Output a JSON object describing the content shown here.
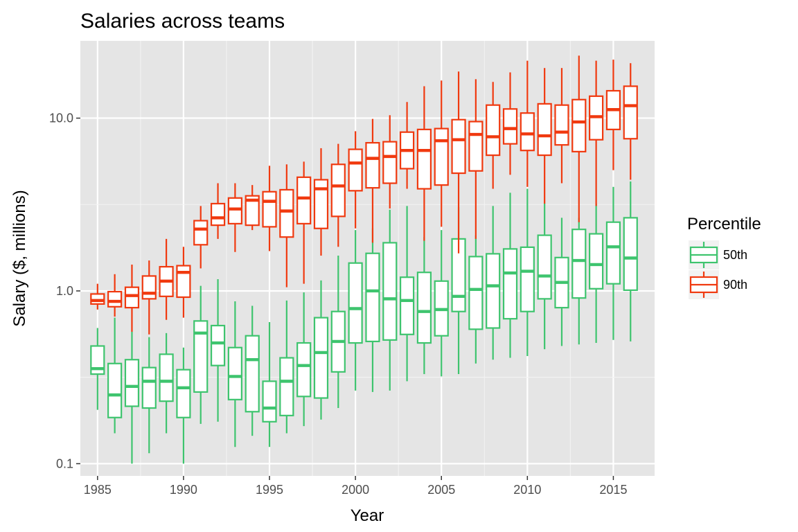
{
  "chart_data": {
    "type": "boxplot",
    "title": "Salaries across teams",
    "xlabel": "Year",
    "ylabel": "Salary ($, millions)",
    "y_scale": "log10",
    "ylim": [
      0.085,
      28
    ],
    "xlim": [
      1984,
      2017.4
    ],
    "x_ticks": [
      1985,
      1990,
      1995,
      2000,
      2005,
      2010,
      2015
    ],
    "x_tick_labels": [
      "1985",
      "1990",
      "1995",
      "2000",
      "2005",
      "2010",
      "2015"
    ],
    "y_ticks": [
      0.1,
      1.0,
      10.0
    ],
    "y_tick_labels": [
      "0.1",
      "1.0",
      "10.0"
    ],
    "grid": true,
    "panel_background": "#e5e5e5",
    "legend": {
      "title": "Percentile",
      "position": "right",
      "entries": [
        {
          "label": "50th",
          "color": "#3ec46e"
        },
        {
          "label": "90th",
          "color": "#f0390f"
        }
      ]
    },
    "series": [
      {
        "name": "50th",
        "color": "#3ec46e",
        "boxes": [
          {
            "x": 1985,
            "min": 0.205,
            "q1": 0.33,
            "median": 0.355,
            "q3": 0.48,
            "max": 0.61
          },
          {
            "x": 1986,
            "min": 0.15,
            "q1": 0.185,
            "median": 0.25,
            "q3": 0.38,
            "max": 0.7
          },
          {
            "x": 1987,
            "min": 0.1,
            "q1": 0.215,
            "median": 0.28,
            "q3": 0.4,
            "max": 0.58
          },
          {
            "x": 1988,
            "min": 0.115,
            "q1": 0.21,
            "median": 0.3,
            "q3": 0.36,
            "max": 0.54
          },
          {
            "x": 1989,
            "min": 0.15,
            "q1": 0.23,
            "median": 0.3,
            "q3": 0.43,
            "max": 0.57
          },
          {
            "x": 1990,
            "min": 0.1,
            "q1": 0.185,
            "median": 0.275,
            "q3": 0.35,
            "max": 0.47
          },
          {
            "x": 1991,
            "min": 0.17,
            "q1": 0.26,
            "median": 0.57,
            "q3": 0.67,
            "max": 1.07
          },
          {
            "x": 1992,
            "min": 0.175,
            "q1": 0.37,
            "median": 0.5,
            "q3": 0.63,
            "max": 1.17
          },
          {
            "x": 1993,
            "min": 0.125,
            "q1": 0.235,
            "median": 0.32,
            "q3": 0.47,
            "max": 0.87
          },
          {
            "x": 1994,
            "min": 0.145,
            "q1": 0.2,
            "median": 0.4,
            "q3": 0.55,
            "max": 0.82
          },
          {
            "x": 1995,
            "min": 0.125,
            "q1": 0.175,
            "median": 0.21,
            "q3": 0.3,
            "max": 0.66
          },
          {
            "x": 1996,
            "min": 0.15,
            "q1": 0.19,
            "median": 0.3,
            "q3": 0.41,
            "max": 0.88
          },
          {
            "x": 1997,
            "min": 0.165,
            "q1": 0.245,
            "median": 0.37,
            "q3": 0.5,
            "max": 0.98
          },
          {
            "x": 1998,
            "min": 0.18,
            "q1": 0.24,
            "median": 0.44,
            "q3": 0.7,
            "max": 1.15
          },
          {
            "x": 1999,
            "min": 0.21,
            "q1": 0.34,
            "median": 0.51,
            "q3": 0.76,
            "max": 1.6
          },
          {
            "x": 2000,
            "min": 0.265,
            "q1": 0.5,
            "median": 0.79,
            "q3": 1.45,
            "max": 2.25
          },
          {
            "x": 2001,
            "min": 0.26,
            "q1": 0.51,
            "median": 1.0,
            "q3": 1.65,
            "max": 2.3
          },
          {
            "x": 2002,
            "min": 0.265,
            "q1": 0.52,
            "median": 0.9,
            "q3": 1.9,
            "max": 2.95
          },
          {
            "x": 2003,
            "min": 0.3,
            "q1": 0.56,
            "median": 0.88,
            "q3": 1.2,
            "max": 3.1
          },
          {
            "x": 2004,
            "min": 0.33,
            "q1": 0.5,
            "median": 0.76,
            "q3": 1.28,
            "max": 2.05
          },
          {
            "x": 2005,
            "min": 0.32,
            "q1": 0.55,
            "median": 0.78,
            "q3": 1.14,
            "max": 2.25
          },
          {
            "x": 2006,
            "min": 0.33,
            "q1": 0.76,
            "median": 0.93,
            "q3": 2.0,
            "max": 3.05
          },
          {
            "x": 2007,
            "min": 0.38,
            "q1": 0.6,
            "median": 1.02,
            "q3": 1.58,
            "max": 2.1
          },
          {
            "x": 2008,
            "min": 0.4,
            "q1": 0.61,
            "median": 1.07,
            "q3": 1.64,
            "max": 3.1
          },
          {
            "x": 2009,
            "min": 0.41,
            "q1": 0.69,
            "median": 1.27,
            "q3": 1.75,
            "max": 3.7
          },
          {
            "x": 2010,
            "min": 0.42,
            "q1": 0.76,
            "median": 1.3,
            "q3": 1.79,
            "max": 3.9
          },
          {
            "x": 2011,
            "min": 0.46,
            "q1": 0.9,
            "median": 1.22,
            "q3": 2.1,
            "max": 3.2
          },
          {
            "x": 2012,
            "min": 0.48,
            "q1": 0.8,
            "median": 1.12,
            "q3": 1.56,
            "max": 2.65
          },
          {
            "x": 2013,
            "min": 0.49,
            "q1": 0.91,
            "median": 1.5,
            "q3": 2.27,
            "max": 2.65
          },
          {
            "x": 2014,
            "min": 0.5,
            "q1": 1.03,
            "median": 1.42,
            "q3": 2.14,
            "max": 3.2
          },
          {
            "x": 2015,
            "min": 0.52,
            "q1": 1.1,
            "median": 1.8,
            "q3": 2.5,
            "max": 4.0
          },
          {
            "x": 2016,
            "min": 0.51,
            "q1": 1.01,
            "median": 1.55,
            "q3": 2.65,
            "max": 4.3
          }
        ]
      },
      {
        "name": "90th",
        "color": "#f0390f",
        "boxes": [
          {
            "x": 1985,
            "min": 0.78,
            "q1": 0.84,
            "median": 0.88,
            "q3": 0.96,
            "max": 1.1
          },
          {
            "x": 1986,
            "min": 0.71,
            "q1": 0.81,
            "median": 0.87,
            "q3": 0.99,
            "max": 1.25
          },
          {
            "x": 1987,
            "min": 0.58,
            "q1": 0.8,
            "median": 0.94,
            "q3": 1.05,
            "max": 1.42
          },
          {
            "x": 1988,
            "min": 0.56,
            "q1": 0.9,
            "median": 0.97,
            "q3": 1.22,
            "max": 1.5
          },
          {
            "x": 1989,
            "min": 0.68,
            "q1": 0.93,
            "median": 1.14,
            "q3": 1.38,
            "max": 2.0
          },
          {
            "x": 1990,
            "min": 0.7,
            "q1": 0.92,
            "median": 1.28,
            "q3": 1.4,
            "max": 1.8
          },
          {
            "x": 1991,
            "min": 1.35,
            "q1": 1.85,
            "median": 2.28,
            "q3": 2.55,
            "max": 3.1
          },
          {
            "x": 1992,
            "min": 2.0,
            "q1": 2.4,
            "median": 2.65,
            "q3": 3.2,
            "max": 4.2
          },
          {
            "x": 1993,
            "min": 1.68,
            "q1": 2.45,
            "median": 2.98,
            "q3": 3.45,
            "max": 4.2
          },
          {
            "x": 1994,
            "min": 2.25,
            "q1": 2.4,
            "median": 3.35,
            "q3": 3.55,
            "max": 4.1
          },
          {
            "x": 1995,
            "min": 1.7,
            "q1": 2.35,
            "median": 3.3,
            "q3": 3.75,
            "max": 5.3
          },
          {
            "x": 1996,
            "min": 1.05,
            "q1": 2.05,
            "median": 2.9,
            "q3": 3.85,
            "max": 5.4
          },
          {
            "x": 1997,
            "min": 1.1,
            "q1": 2.45,
            "median": 3.45,
            "q3": 4.55,
            "max": 5.6
          },
          {
            "x": 1998,
            "min": 1.6,
            "q1": 2.3,
            "median": 3.9,
            "q3": 4.4,
            "max": 6.7
          },
          {
            "x": 1999,
            "min": 1.8,
            "q1": 2.7,
            "median": 4.05,
            "q3": 5.4,
            "max": 7.1
          },
          {
            "x": 2000,
            "min": 2.3,
            "q1": 3.8,
            "median": 5.5,
            "q3": 6.6,
            "max": 8.4
          },
          {
            "x": 2001,
            "min": 1.9,
            "q1": 3.95,
            "median": 5.85,
            "q3": 7.2,
            "max": 9.9
          },
          {
            "x": 2002,
            "min": 3.0,
            "q1": 4.2,
            "median": 6.0,
            "q3": 7.3,
            "max": 10.4
          },
          {
            "x": 2003,
            "min": 3.9,
            "q1": 5.1,
            "median": 6.5,
            "q3": 8.3,
            "max": 12.4
          },
          {
            "x": 2004,
            "min": 1.95,
            "q1": 3.9,
            "median": 6.5,
            "q3": 8.6,
            "max": 15.3
          },
          {
            "x": 2005,
            "min": 2.35,
            "q1": 4.1,
            "median": 7.4,
            "q3": 8.7,
            "max": 16.5
          },
          {
            "x": 2006,
            "min": 1.65,
            "q1": 4.8,
            "median": 7.5,
            "q3": 9.8,
            "max": 18.6
          },
          {
            "x": 2007,
            "min": 2.0,
            "q1": 4.95,
            "median": 8.05,
            "q3": 9.55,
            "max": 16.8
          },
          {
            "x": 2008,
            "min": 3.9,
            "q1": 6.1,
            "median": 7.8,
            "q3": 11.9,
            "max": 16.2
          },
          {
            "x": 2009,
            "min": 4.7,
            "q1": 7.1,
            "median": 8.7,
            "q3": 11.3,
            "max": 18.4
          },
          {
            "x": 2010,
            "min": 4.0,
            "q1": 6.5,
            "median": 8.1,
            "q3": 10.7,
            "max": 21.5
          },
          {
            "x": 2011,
            "min": 3.2,
            "q1": 6.1,
            "median": 7.9,
            "q3": 12.1,
            "max": 19.5
          },
          {
            "x": 2012,
            "min": 4.2,
            "q1": 7.0,
            "median": 8.3,
            "q3": 11.9,
            "max": 19.5
          },
          {
            "x": 2013,
            "min": 2.5,
            "q1": 6.4,
            "median": 9.5,
            "q3": 12.8,
            "max": 23.0
          },
          {
            "x": 2014,
            "min": 3.1,
            "q1": 7.5,
            "median": 10.2,
            "q3": 13.4,
            "max": 21.5
          },
          {
            "x": 2015,
            "min": 5.0,
            "q1": 8.6,
            "median": 11.2,
            "q3": 14.4,
            "max": 21.8
          },
          {
            "x": 2016,
            "min": 4.4,
            "q1": 7.6,
            "median": 11.8,
            "q3": 15.3,
            "max": 20.8
          }
        ]
      }
    ]
  }
}
